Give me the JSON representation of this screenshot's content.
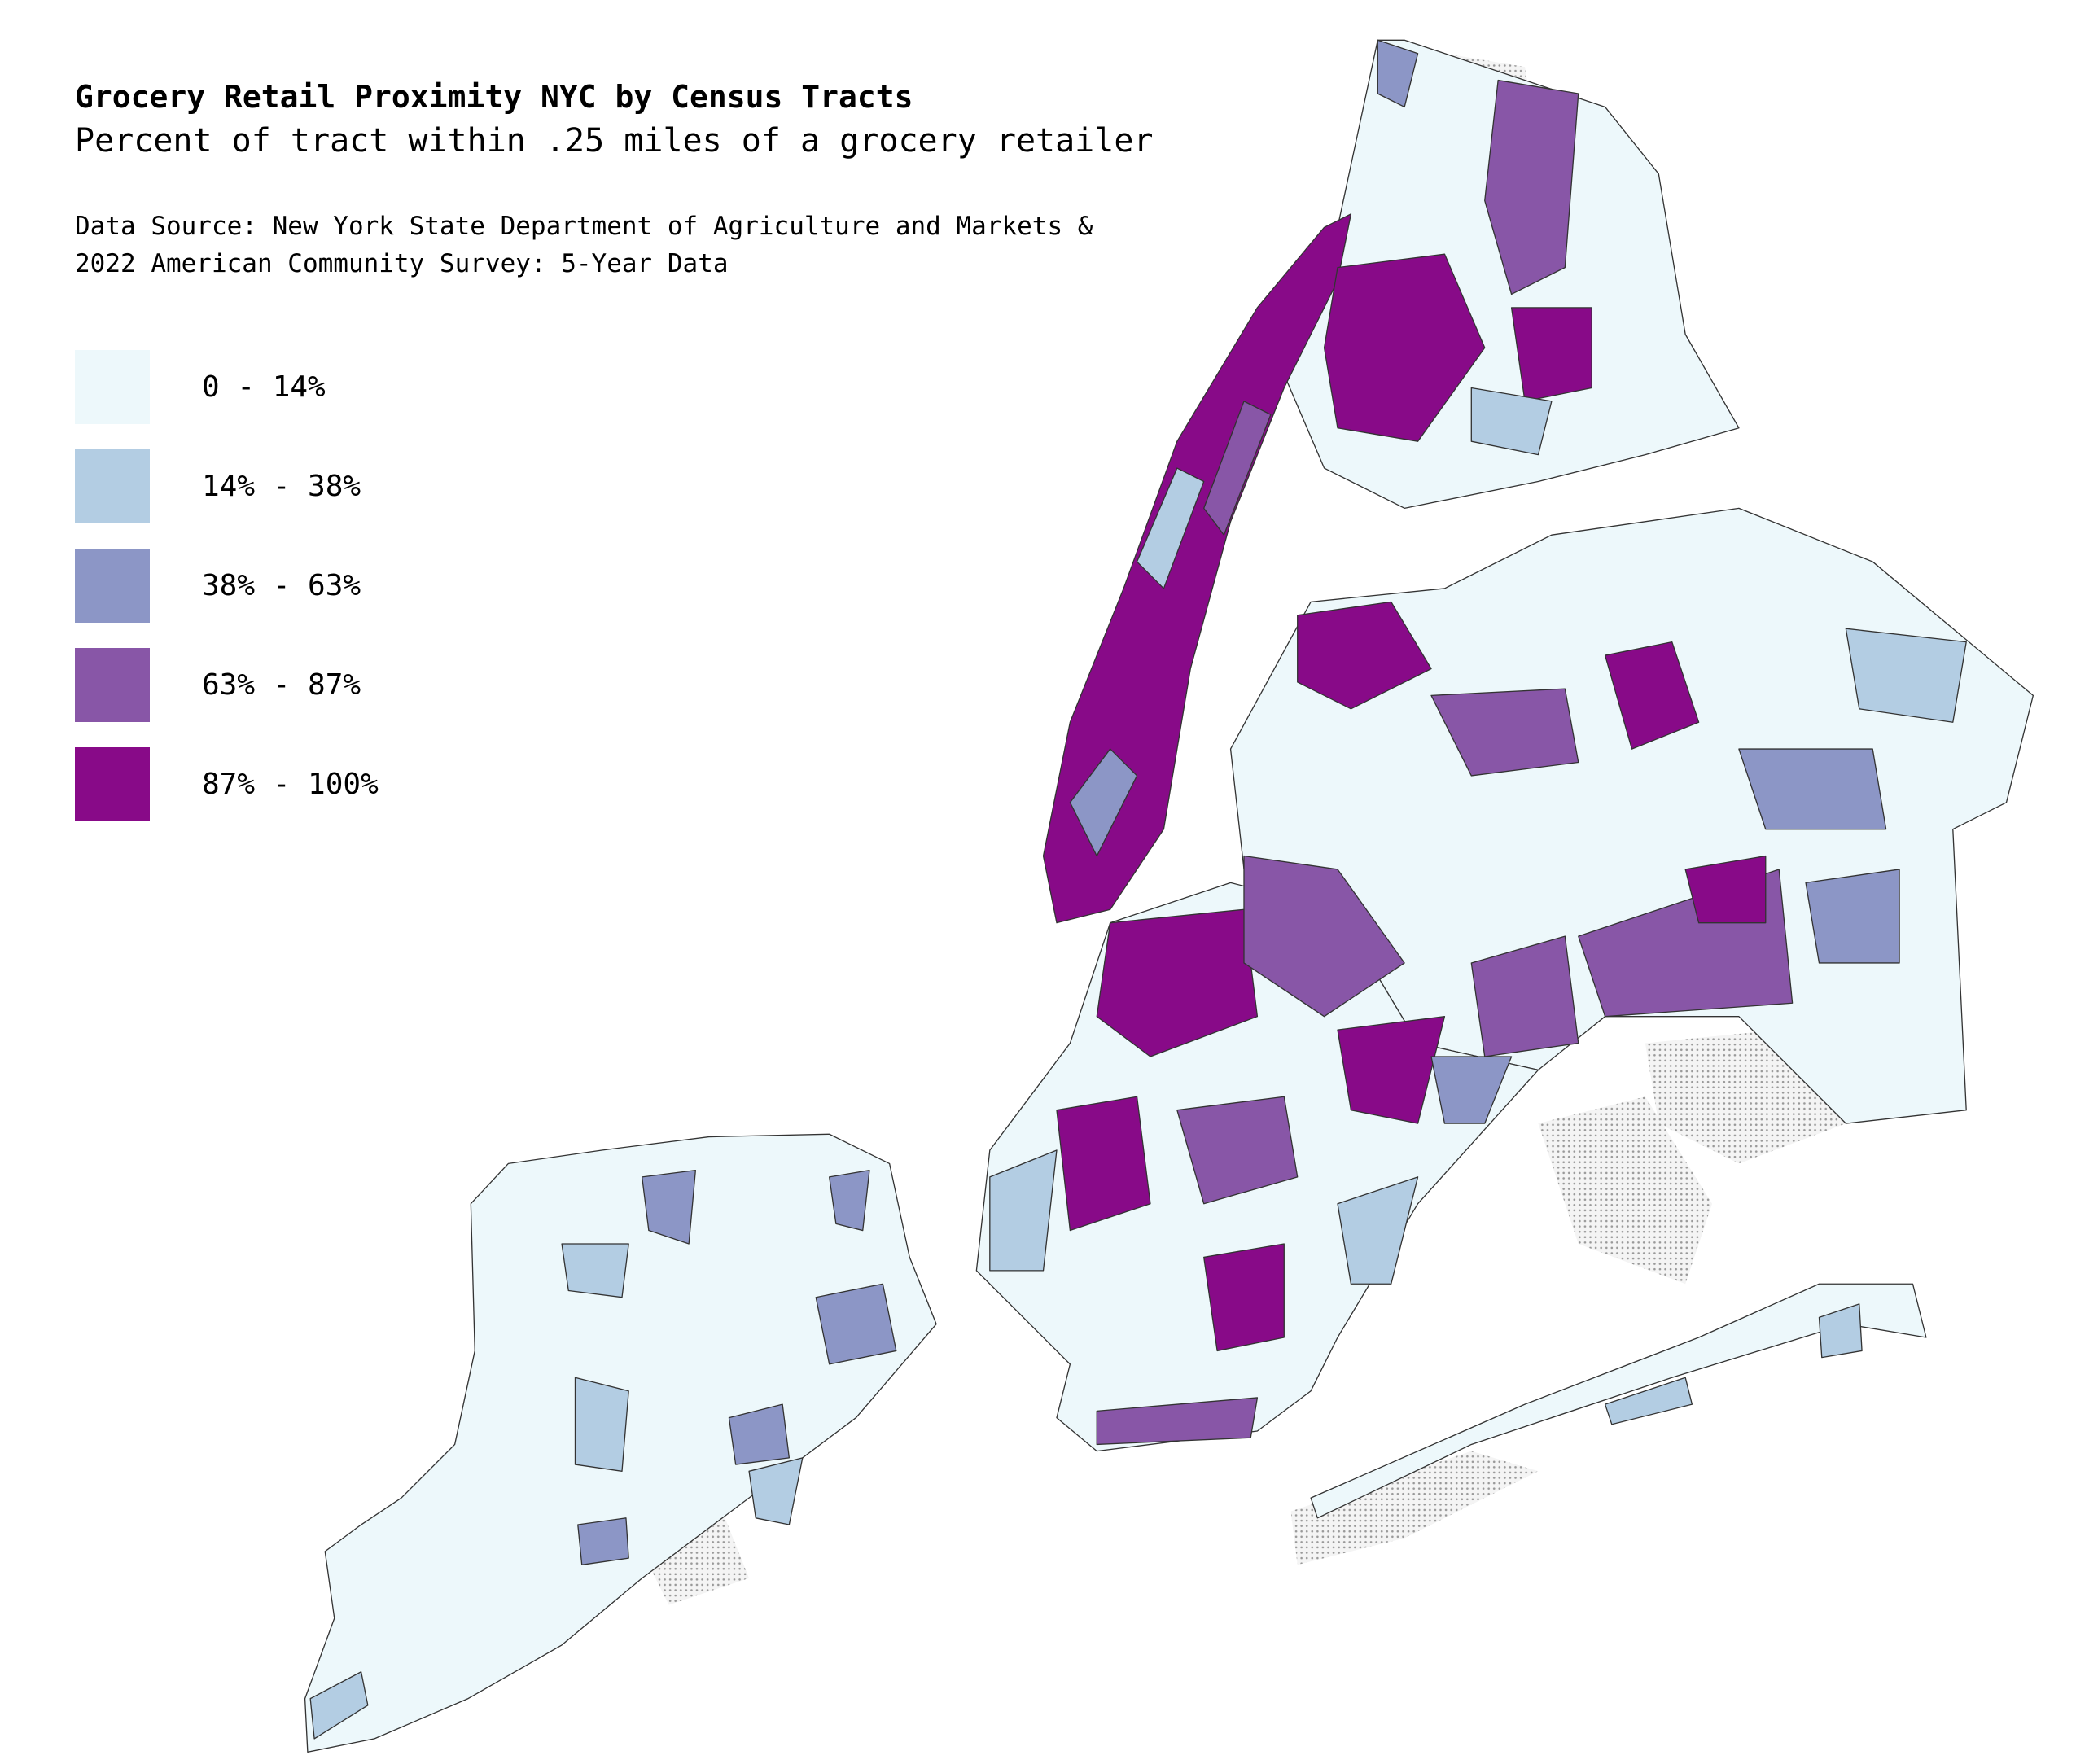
{
  "header": {
    "title": "Grocery Retail Proximity NYC by Census Tracts",
    "subtitle": "Percent of tract within .25 miles of a grocery retailer",
    "source": [
      "Data Source: New York State Department of Agriculture and Markets &",
      "2022 American Community Survey: 5-Year Data"
    ]
  },
  "legend": [
    {
      "label": "0 - 14%",
      "color": "#edf8fb"
    },
    {
      "label": "14% - 38%",
      "color": "#b3cde3"
    },
    {
      "label": "38% - 63%",
      "color": "#8c96c6"
    },
    {
      "label": "63% - 87%",
      "color": "#8856a7"
    },
    {
      "label": "87% - 100%",
      "color": "#880a88"
    }
  ]
}
